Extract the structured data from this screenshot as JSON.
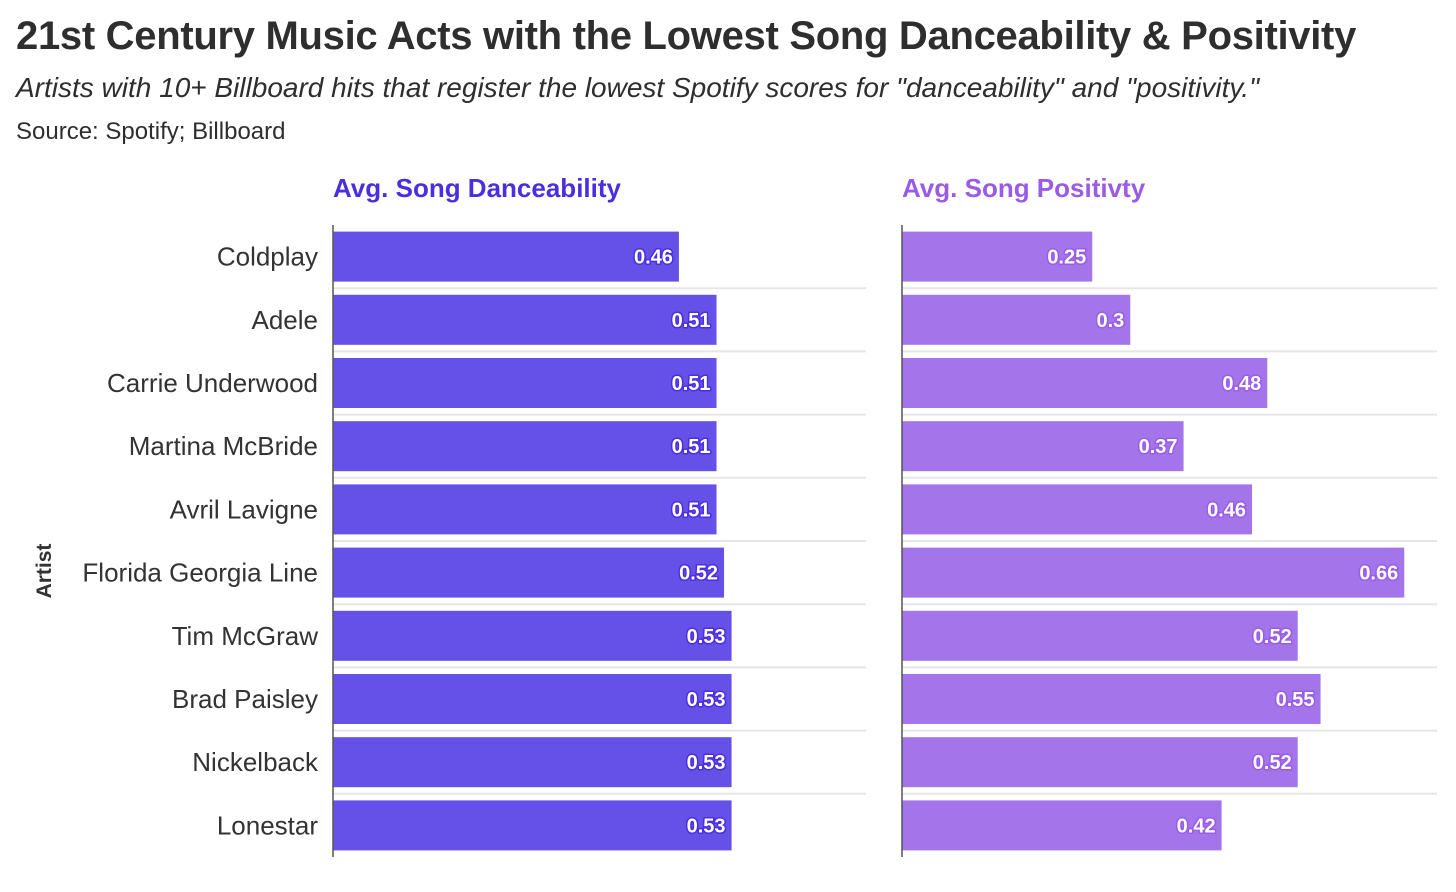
{
  "header": {
    "title": "21st Century Music Acts with the Lowest Song Danceability & Positivity",
    "subtitle": "Artists with 10+ Billboard hits that register the lowest Spotify scores for \"danceability\" and \"positivity.\"",
    "source": "Source: Spotify; Billboard"
  },
  "chart_data": {
    "type": "bar",
    "orientation": "horizontal",
    "ylabel": "Artist",
    "categories": [
      "Coldplay",
      "Adele",
      "Carrie Underwood",
      "Martina McBride",
      "Avril Lavigne",
      "Florida Georgia Line",
      "Tim McGraw",
      "Brad Paisley",
      "Nickelback",
      "Lonestar"
    ],
    "grid": true,
    "xlim": [
      0,
      0.7
    ],
    "panels": [
      {
        "title": "Avg. Song Danceability",
        "color": "#6550e8",
        "title_color": "#4a2ee0",
        "values": [
          0.46,
          0.51,
          0.51,
          0.51,
          0.51,
          0.52,
          0.53,
          0.53,
          0.53,
          0.53
        ],
        "labels": [
          "0.46",
          "0.51",
          "0.51",
          "0.51",
          "0.51",
          "0.52",
          "0.53",
          "0.53",
          "0.53",
          "0.53"
        ]
      },
      {
        "title": "Avg. Song Positivty",
        "color": "#a475ea",
        "title_color": "#9a5be6",
        "values": [
          0.25,
          0.3,
          0.48,
          0.37,
          0.46,
          0.66,
          0.52,
          0.55,
          0.52,
          0.42
        ],
        "labels": [
          "0.25",
          "0.3",
          "0.48",
          "0.37",
          "0.46",
          "0.66",
          "0.52",
          "0.55",
          "0.52",
          "0.42"
        ]
      }
    ]
  }
}
